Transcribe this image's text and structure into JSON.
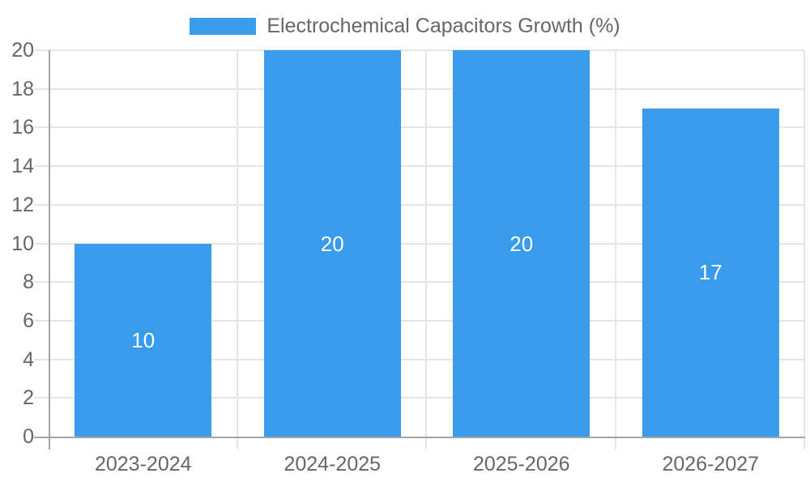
{
  "chart": {
    "legend": {
      "label": "Electrochemical Capacitors Growth (%)"
    },
    "colors": {
      "bar": "#389BEC",
      "legend_text": "#666666",
      "tick_text": "#666666",
      "value_text": "#ffffff",
      "grid": "#e6e6e6",
      "axis": "#a5a5a5",
      "background": "#ffffff"
    }
  },
  "chart_data": {
    "type": "bar",
    "title": "Electrochemical Capacitors Growth (%)",
    "legend_entries": [
      "Electrochemical Capacitors Growth (%)"
    ],
    "legend_position": "top-center",
    "categories": [
      "2023-2024",
      "2024-2025",
      "2025-2026",
      "2026-2027"
    ],
    "values": [
      10,
      20,
      20,
      17
    ],
    "data_labels": [
      "10",
      "20",
      "20",
      "17"
    ],
    "xlabel": "",
    "ylabel": "",
    "ylim": [
      0,
      20
    ],
    "ytick_step": 2,
    "yticks": [
      0,
      2,
      4,
      6,
      8,
      10,
      12,
      14,
      16,
      18,
      20
    ],
    "grid": true,
    "bar_label_position": "inside-center"
  }
}
